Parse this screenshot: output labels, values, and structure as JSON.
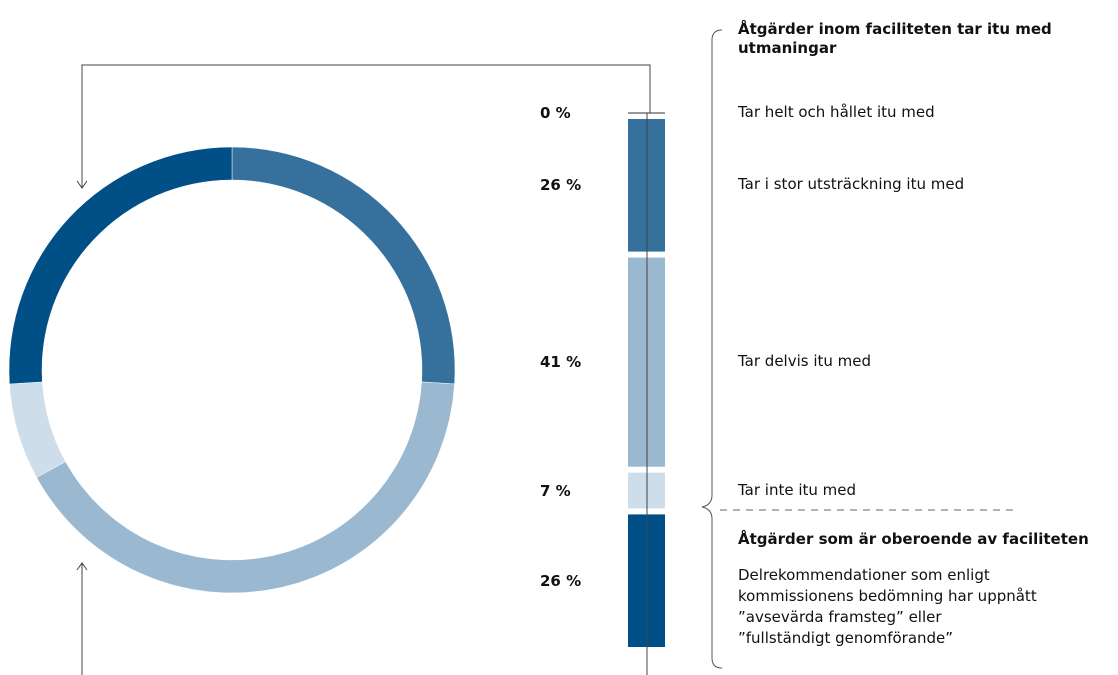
{
  "chart_data": {
    "type": "donut",
    "categories": [
      "Tar helt och hållet itu med",
      "Tar i stor utsträckning itu med",
      "Tar delvis itu med",
      "Tar inte itu med",
      "Delrekommendationer som enligt kommissionens bedömning har uppnått ”avsevärda framsteg” eller ”fullständigt genomförande”"
    ],
    "values": [
      0,
      26,
      41,
      7,
      26
    ],
    "value_labels": [
      "0 %",
      "26 %",
      "41 %",
      "7 %",
      "26 %"
    ],
    "colors": [
      "#36719e",
      "#36719e",
      "#9ab9d1",
      "#cddde9",
      "#004f86"
    ],
    "groups": [
      {
        "title": "Åtgärder inom faciliteten tar itu med utmaningar"
      },
      {
        "title": "Åtgärder som är oberoende av faciliteten"
      }
    ]
  }
}
